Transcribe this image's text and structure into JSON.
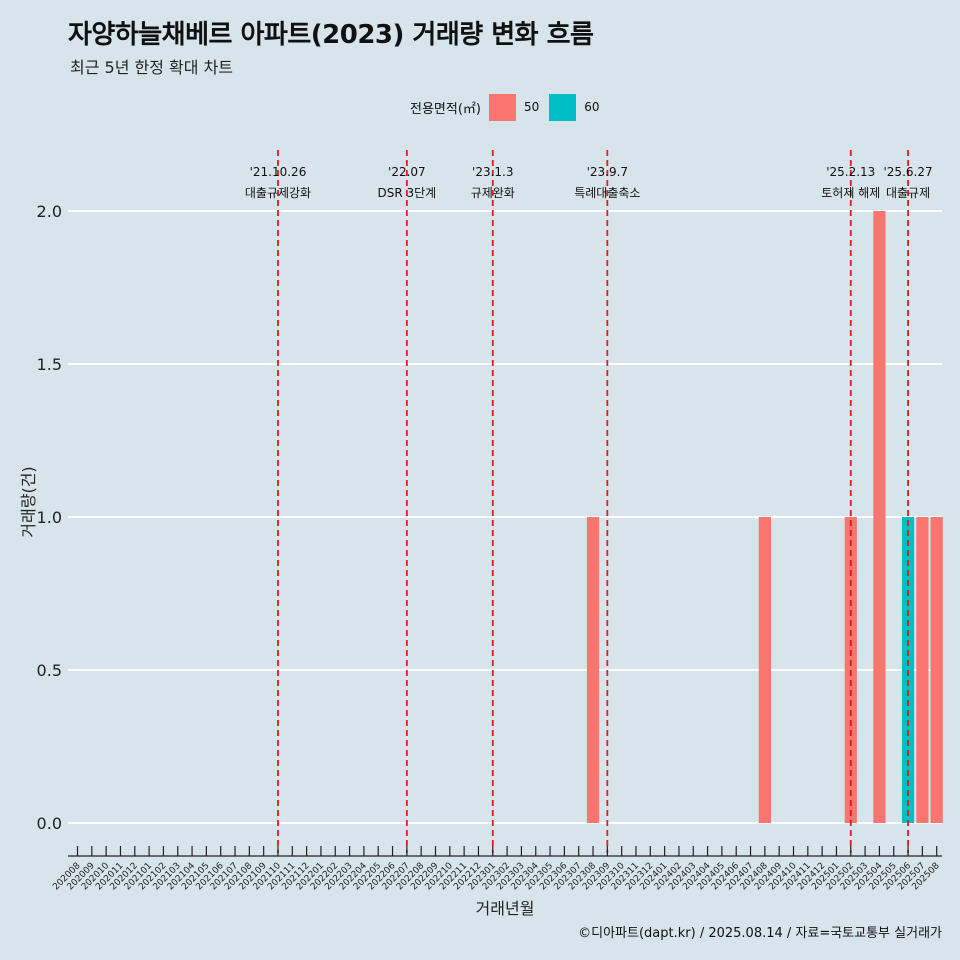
{
  "title": "자양하늘채베르 아파트(2023) 거래량 변화 흐름",
  "subtitle": "최근 5년 한정 확대 차트",
  "caption": "©디아파트(dapt.kr) / 2025.08.14 / 자료=국토교통부 실거래가",
  "legend": {
    "title": "전용면적(㎡)",
    "items": [
      {
        "label": "50",
        "color": "#f8766d"
      },
      {
        "label": "60",
        "color": "#00bfc4"
      }
    ]
  },
  "colors": {
    "background": "#d7e4ec",
    "grid": "#ffffff",
    "event_line": "#e41a1c"
  },
  "chart_data": {
    "type": "bar",
    "stacked": true,
    "xlabel": "거래년월",
    "ylabel": "거래량(건)",
    "ylim": [
      0,
      2
    ],
    "yticks": [
      "0.0",
      "0.5",
      "1.0",
      "1.5",
      "2.0"
    ],
    "grid": "horizontal",
    "legend_position": "top",
    "categories": [
      "202008",
      "202009",
      "202010",
      "202011",
      "202012",
      "202101",
      "202102",
      "202103",
      "202104",
      "202105",
      "202106",
      "202107",
      "202108",
      "202109",
      "202110",
      "202111",
      "202112",
      "202201",
      "202202",
      "202203",
      "202204",
      "202205",
      "202206",
      "202207",
      "202208",
      "202209",
      "202210",
      "202211",
      "202212",
      "202301",
      "202302",
      "202303",
      "202304",
      "202305",
      "202306",
      "202307",
      "202308",
      "202309",
      "202310",
      "202311",
      "202312",
      "202401",
      "202402",
      "202403",
      "202404",
      "202405",
      "202406",
      "202407",
      "202408",
      "202409",
      "202410",
      "202411",
      "202412",
      "202501",
      "202502",
      "202503",
      "202504",
      "202505",
      "202506",
      "202507",
      "202508"
    ],
    "series": [
      {
        "name": "50",
        "color": "#f8766d",
        "values": [
          0,
          0,
          0,
          0,
          0,
          0,
          0,
          0,
          0,
          0,
          0,
          0,
          0,
          0,
          0,
          0,
          0,
          0,
          0,
          0,
          0,
          0,
          0,
          0,
          0,
          0,
          0,
          0,
          0,
          0,
          0,
          0,
          0,
          0,
          0,
          0,
          1,
          0,
          0,
          0,
          0,
          0,
          0,
          0,
          0,
          0,
          0,
          0,
          1,
          0,
          0,
          0,
          0,
          0,
          1,
          0,
          2,
          0,
          0,
          1,
          1
        ]
      },
      {
        "name": "60",
        "color": "#00bfc4",
        "values": [
          0,
          0,
          0,
          0,
          0,
          0,
          0,
          0,
          0,
          0,
          0,
          0,
          0,
          0,
          0,
          0,
          0,
          0,
          0,
          0,
          0,
          0,
          0,
          0,
          0,
          0,
          0,
          0,
          0,
          0,
          0,
          0,
          0,
          0,
          0,
          0,
          0,
          0,
          0,
          0,
          0,
          0,
          0,
          0,
          0,
          0,
          0,
          0,
          0,
          0,
          0,
          0,
          0,
          0,
          0,
          0,
          0,
          0,
          1,
          0,
          0
        ]
      }
    ],
    "annotations": [
      {
        "category": "202110",
        "date": "'21.10.26",
        "label": "대출규제강화"
      },
      {
        "category": "202207",
        "date": "'22.07",
        "label": "DSR 3단계"
      },
      {
        "category": "202301",
        "date": "'23.1.3",
        "label": "규제완화"
      },
      {
        "category": "202309",
        "date": "'23.9.7",
        "label": "특례대출축소"
      },
      {
        "category": "202502",
        "date": "'25.2.13",
        "label": "토허제 해제"
      },
      {
        "category": "202506",
        "date": "'25.6.27",
        "label": "대출규제"
      }
    ]
  }
}
